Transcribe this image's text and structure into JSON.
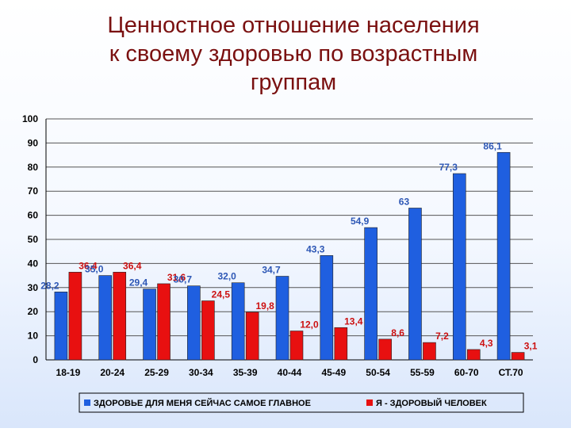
{
  "title_lines": [
    "Ценностное отношение населения",
    "к своему здоровью по возрастным",
    "группам"
  ],
  "chart_data": {
    "type": "bar",
    "categories": [
      "18-19",
      "20-24",
      "25-29",
      "30-34",
      "35-39",
      "40-44",
      "45-49",
      "50-54",
      "55-59",
      "60-70",
      "СТ.70"
    ],
    "ylim": [
      0,
      100
    ],
    "y_ticks": [
      0,
      10,
      20,
      30,
      40,
      50,
      60,
      70,
      80,
      90,
      100
    ],
    "grid": true,
    "legend_position": "bottom",
    "series": [
      {
        "name": "ЗДОРОВЬЕ ДЛЯ МЕНЯ СЕЙЧАС САМОЕ ГЛАВНОЕ",
        "color": "#1f5fe0",
        "values": [
          28.2,
          35.0,
          29.4,
          30.7,
          32.0,
          34.7,
          43.3,
          54.9,
          63,
          77.3,
          86.1
        ],
        "labels": [
          "28,2",
          "35,0",
          "29,4",
          "30,7",
          "32,0",
          "34,7",
          "43,3",
          "54,9",
          "63",
          "77,3",
          "86,1"
        ]
      },
      {
        "name": "Я - ЗДОРОВЫЙ ЧЕЛОВЕК",
        "color": "#e81010",
        "values": [
          36.4,
          36.4,
          31.6,
          24.5,
          19.8,
          12.0,
          13.4,
          8.6,
          7.2,
          4.3,
          3.1
        ],
        "labels": [
          "36,4",
          "36,4",
          "31,6",
          "24,5",
          "19,8",
          "12,0",
          "13,4",
          "8,6",
          "7,2",
          "4,3",
          "3,1"
        ]
      }
    ]
  }
}
